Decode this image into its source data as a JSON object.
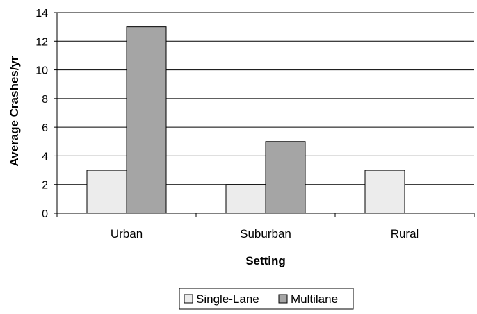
{
  "chart_data": {
    "type": "bar",
    "title": "",
    "xlabel": "Setting",
    "ylabel": "Average Crashes/yr",
    "categories": [
      "Urban",
      "Suburban",
      "Rural"
    ],
    "series": [
      {
        "name": "Single-Lane",
        "values": [
          3,
          2,
          3
        ],
        "color": "#ececec"
      },
      {
        "name": "Multilane",
        "values": [
          13,
          5,
          0
        ],
        "color": "#a5a5a5"
      }
    ],
    "ylim": [
      0,
      14
    ],
    "yticks": [
      "0",
      "2",
      "4",
      "6",
      "8",
      "10",
      "12",
      "14"
    ],
    "grid": true,
    "legend_position": "bottom"
  }
}
